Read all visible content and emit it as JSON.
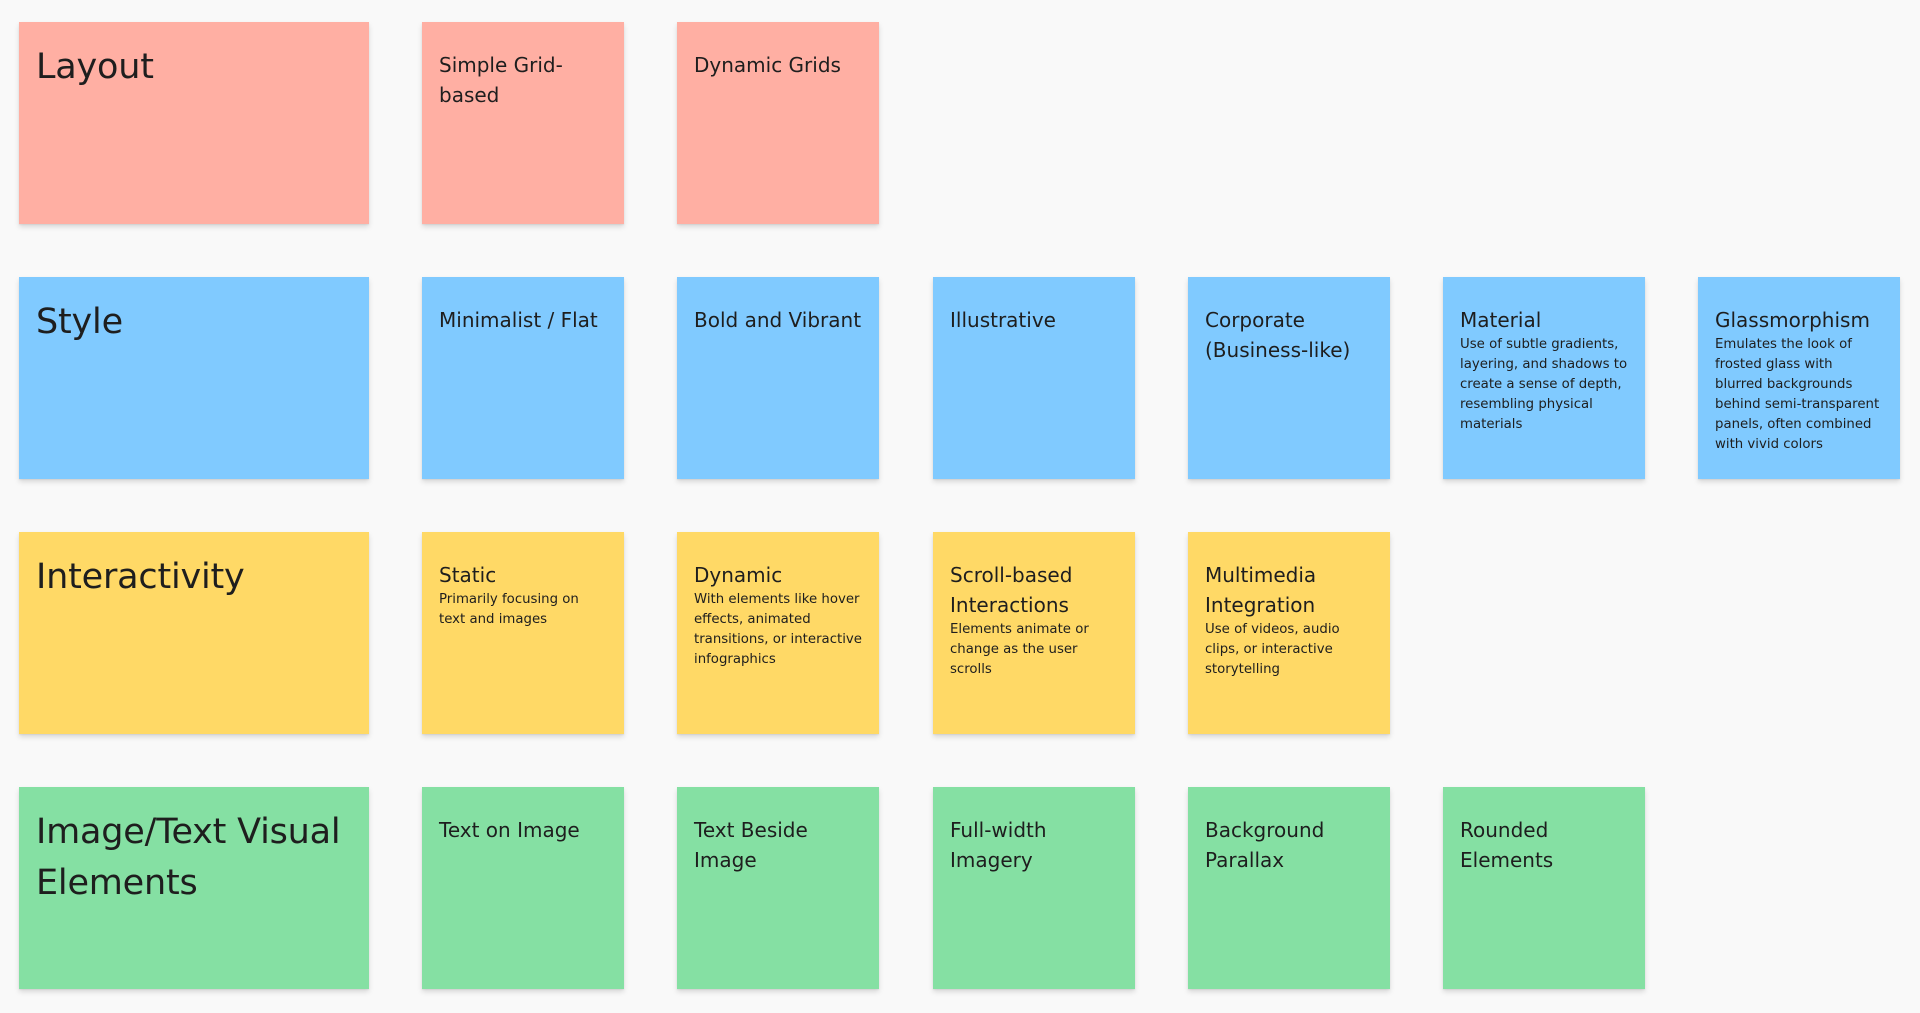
{
  "board": {
    "rows": [
      {
        "header": "Layout",
        "color": "#ffafa3",
        "notes": [
          {
            "title": "Simple Grid-based",
            "desc": ""
          },
          {
            "title": "Dynamic Grids",
            "desc": ""
          }
        ]
      },
      {
        "header": "Style",
        "color": "#80caff",
        "notes": [
          {
            "title": "Minimalist / Flat",
            "desc": ""
          },
          {
            "title": "Bold and Vibrant",
            "desc": ""
          },
          {
            "title": "Illustrative",
            "desc": ""
          },
          {
            "title": "Corporate (Business-like)",
            "desc": ""
          },
          {
            "title": "Material",
            "desc": "Use of subtle gradients, layering, and shadows to create a sense of depth, resembling physical materials"
          },
          {
            "title": "Glassmorphism",
            "desc": "Emulates the look of frosted glass with blurred backgrounds behind semi-transparent panels, often combined with vivid colors"
          }
        ]
      },
      {
        "header": "Interactivity",
        "color": "#ffd966",
        "notes": [
          {
            "title": "Static",
            "desc": "Primarily focusing on text and images"
          },
          {
            "title": "Dynamic",
            "desc": "With elements like hover effects, animated transitions, or interactive infographics"
          },
          {
            "title": "Scroll-based Interactions",
            "desc": "Elements animate or change as the user scrolls"
          },
          {
            "title": "Multimedia Integration",
            "desc": "Use of videos, audio clips, or interactive storytelling"
          }
        ]
      },
      {
        "header": "Image/Text Visual Elements",
        "color": "#85e0a3",
        "notes": [
          {
            "title": "Text on Image",
            "desc": ""
          },
          {
            "title": "Text Beside Image",
            "desc": ""
          },
          {
            "title": "Full-width Imagery",
            "desc": ""
          },
          {
            "title": "Background Parallax",
            "desc": ""
          },
          {
            "title": "Rounded Elements",
            "desc": ""
          }
        ]
      }
    ]
  }
}
